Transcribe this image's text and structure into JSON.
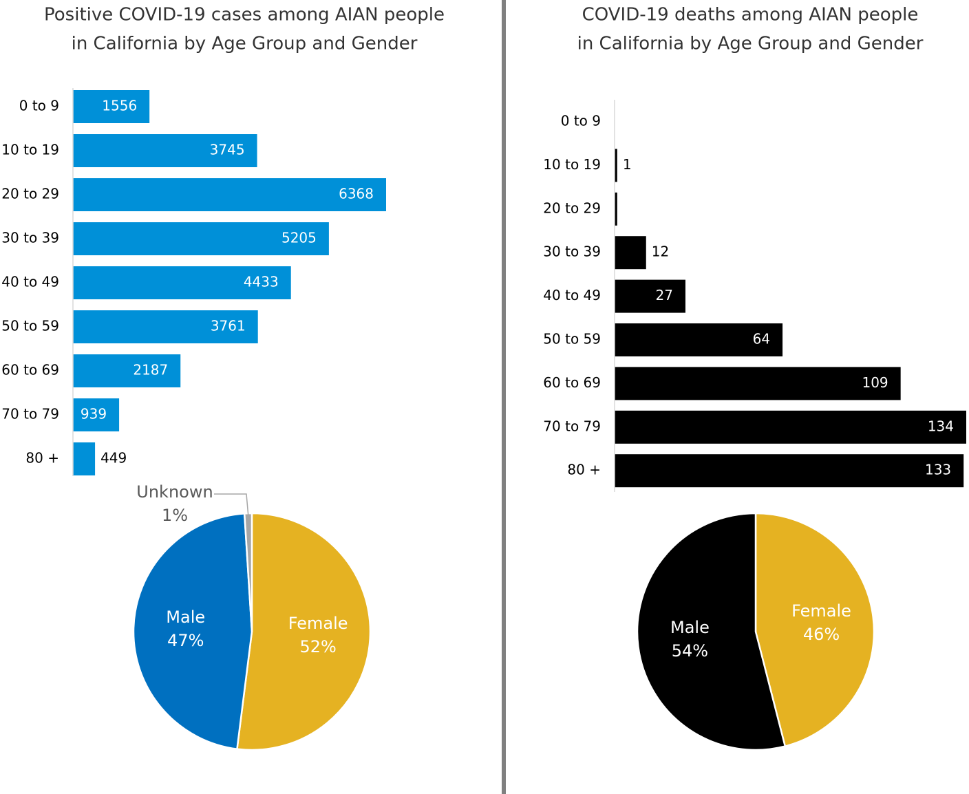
{
  "chart_data": [
    {
      "type": "bar",
      "title": [
        "Positive COVID-19 cases among AIAN people",
        "in California by Age Group and Gender"
      ],
      "categories": [
        "0 to 9",
        "10 to 19",
        "20 to 29",
        "30 to 39",
        "40 to 49",
        "50 to 59",
        "60 to 69",
        "70 to 79",
        "80 +"
      ],
      "values": [
        1556,
        3745,
        6368,
        5205,
        4433,
        3761,
        2187,
        939,
        449
      ],
      "color": "#0090d8"
    },
    {
      "type": "pie",
      "categories": [
        "Female",
        "Male",
        "Unknown"
      ],
      "values": [
        52,
        47,
        1
      ],
      "value_labels": [
        "52%",
        "47%",
        "1%"
      ],
      "colors": [
        "#e5b222",
        "#0070c0",
        "#a6a6a6"
      ]
    },
    {
      "type": "bar",
      "title": [
        "COVID-19 deaths among AIAN people",
        "in California by Age Group and Gender"
      ],
      "categories": [
        "0 to 9",
        "10 to 19",
        "20 to 29",
        "30 to 39",
        "40 to 49",
        "50 to 59",
        "60 to 69",
        "70 to 79",
        "80 +"
      ],
      "values": [
        0,
        1,
        1,
        12,
        27,
        64,
        109,
        134,
        133
      ],
      "value_labels": [
        null,
        "1",
        null,
        "12",
        "27",
        "64",
        "109",
        "134",
        "133"
      ],
      "color": "#000000"
    },
    {
      "type": "pie",
      "categories": [
        "Female",
        "Male"
      ],
      "values": [
        46,
        54
      ],
      "value_labels": [
        "46%",
        "54%"
      ],
      "colors": [
        "#e5b222",
        "#000000"
      ]
    }
  ]
}
